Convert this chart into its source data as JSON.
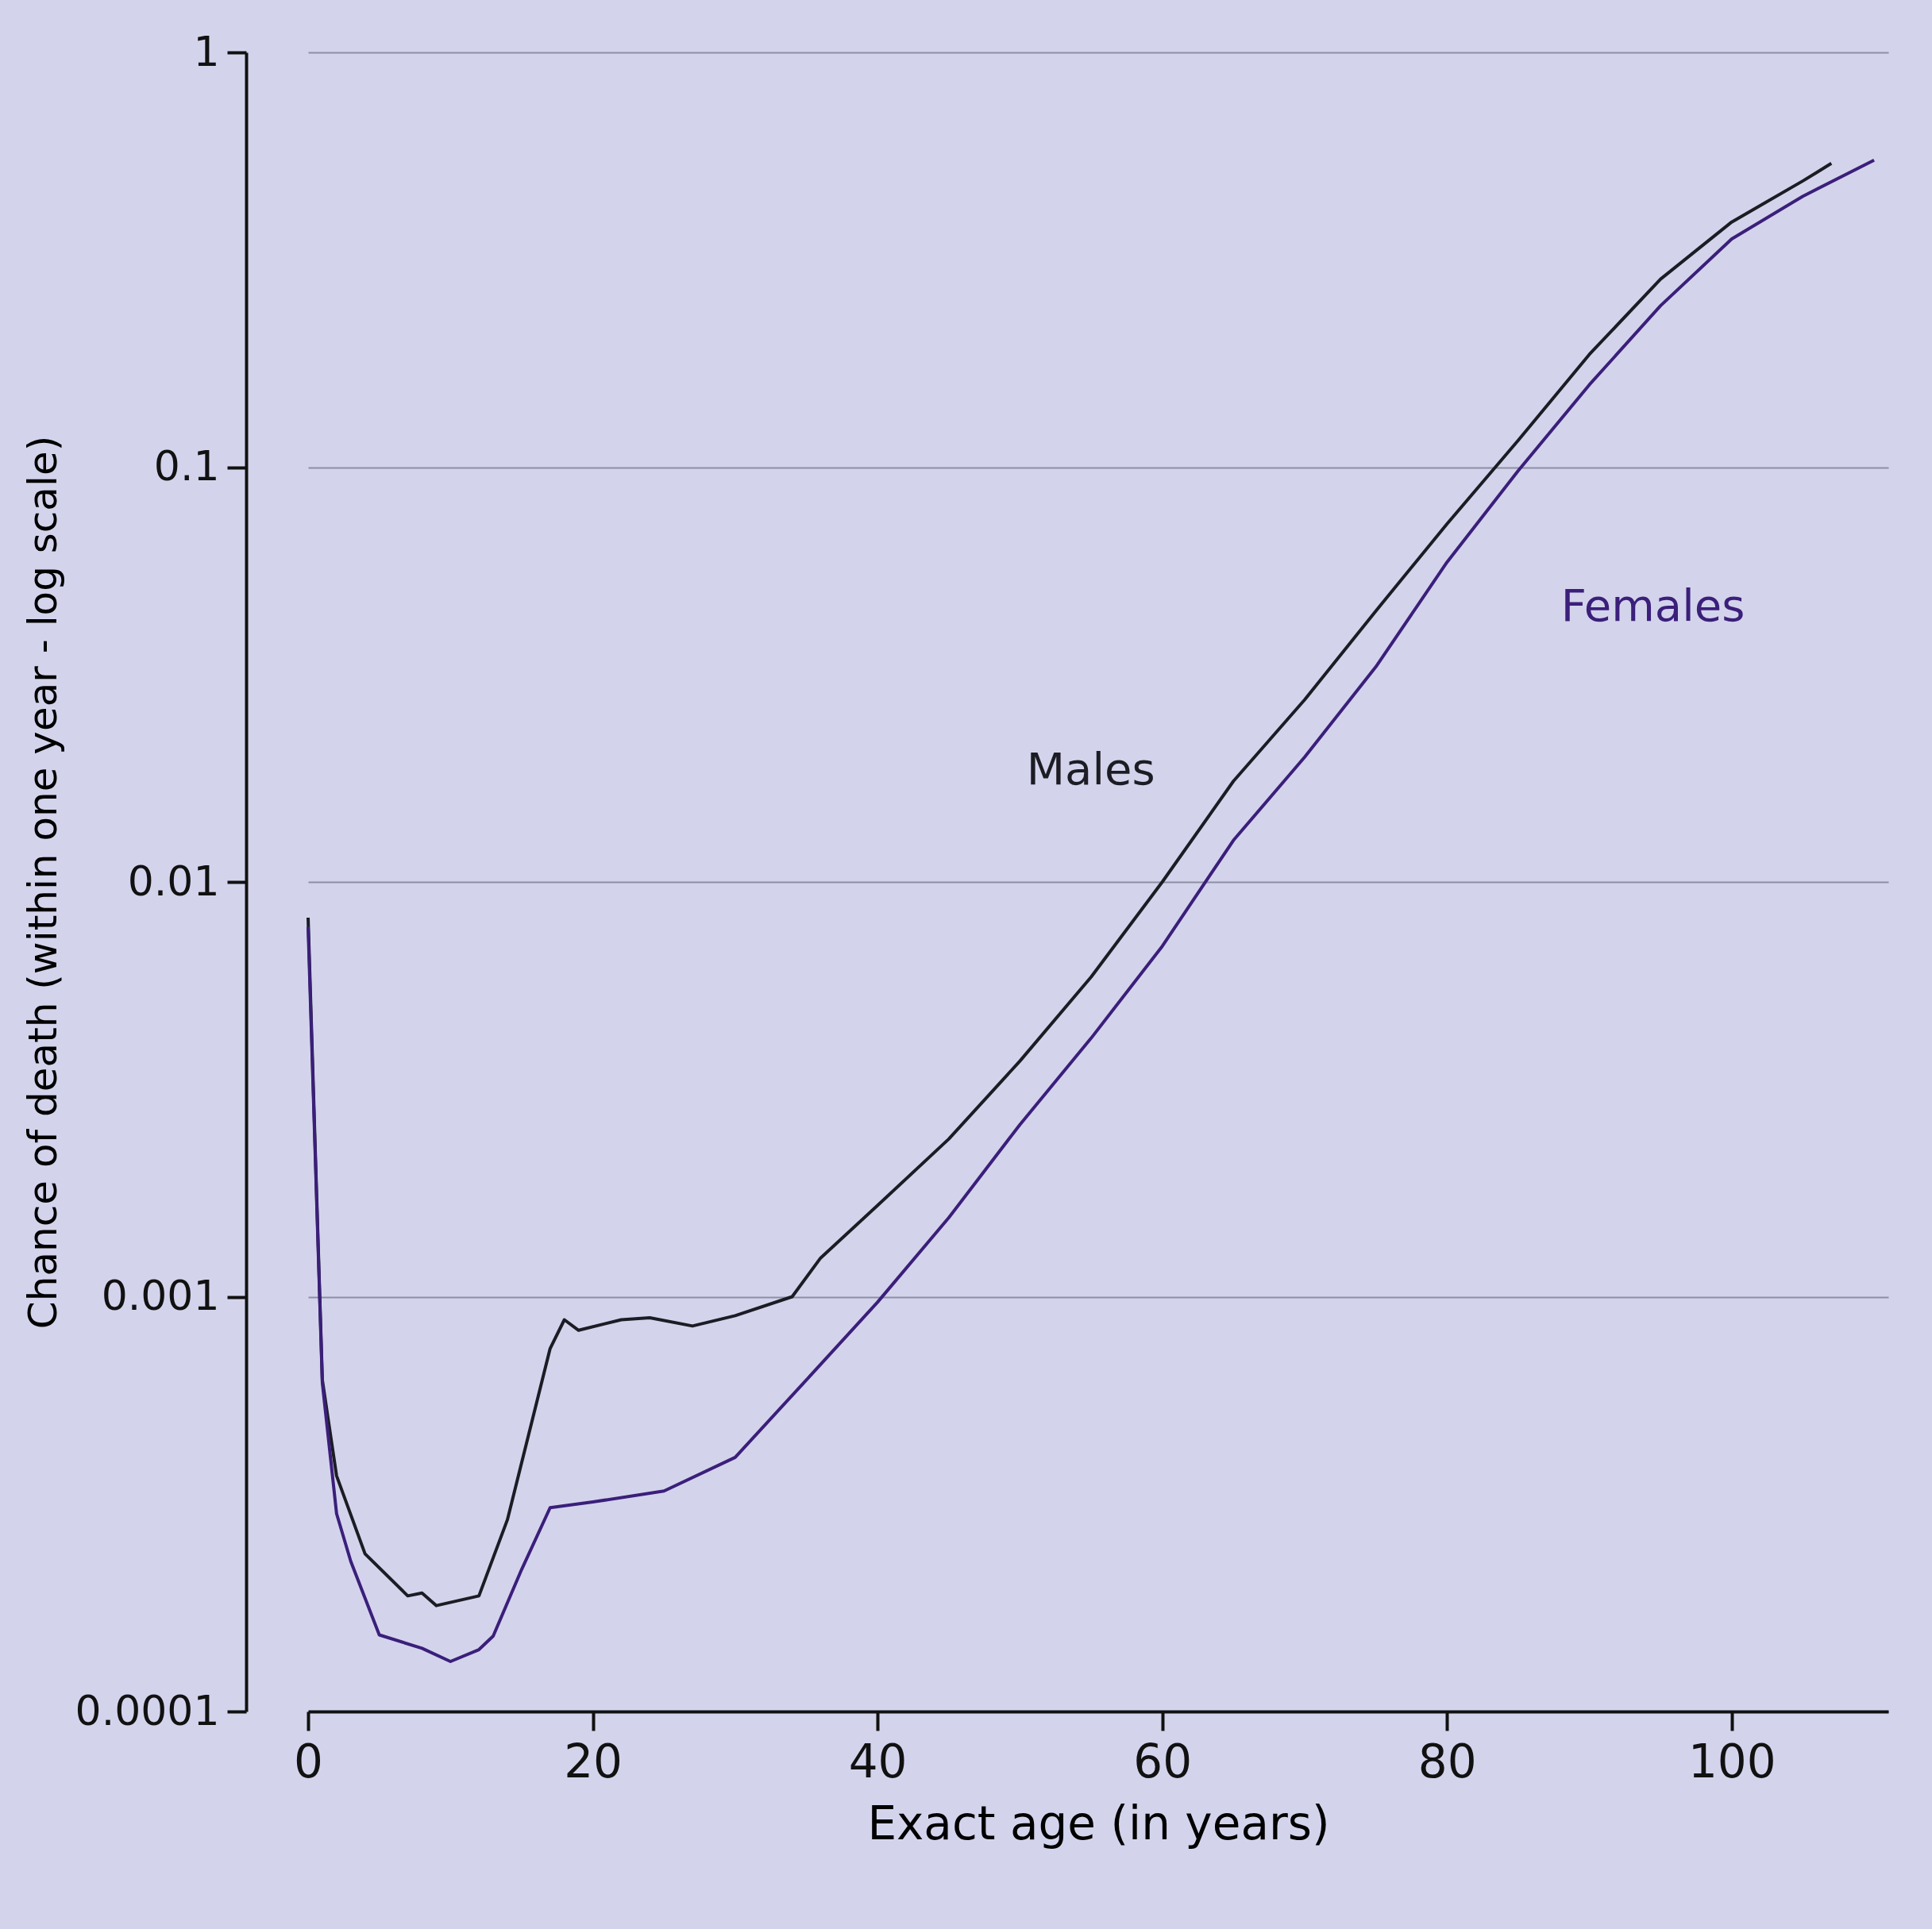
{
  "chart_data": {
    "type": "line",
    "xlabel": "Exact age (in years)",
    "ylabel": "Chance of death (within one year - log scale)",
    "log": "y",
    "grid": "y",
    "legend": false,
    "line_style": "solid",
    "marker": "none",
    "xlim": [
      0,
      111
    ],
    "xticks": [
      0,
      20,
      40,
      60,
      80,
      100
    ],
    "ylim": [
      0.0001,
      1
    ],
    "yticks": [
      0.0001,
      0.001,
      0.01,
      0.1,
      1
    ],
    "series": [
      {
        "name": "Males",
        "color": "#1c1c24",
        "x": [
          0,
          1,
          2,
          4,
          7,
          8,
          9,
          12,
          14,
          17,
          18,
          19,
          22,
          24,
          27,
          30,
          34,
          36,
          40,
          45,
          50,
          55,
          60,
          65,
          70,
          75,
          80,
          85,
          90,
          95,
          100,
          105,
          107
        ],
        "values": [
          0.0082,
          0.00063,
          0.00037,
          0.00024,
          0.00019,
          0.000193,
          0.00018,
          0.00019,
          0.00029,
          0.00075,
          0.00088,
          0.00083,
          0.00088,
          0.00089,
          0.00085,
          0.0009,
          0.001,
          0.00124,
          0.00166,
          0.0024,
          0.0037,
          0.0059,
          0.01,
          0.0175,
          0.0275,
          0.045,
          0.073,
          0.116,
          0.187,
          0.284,
          0.39,
          0.49,
          0.54
        ]
      },
      {
        "name": "Females",
        "color": "#3b1f7a",
        "x": [
          0,
          1,
          2,
          3,
          5,
          8,
          10,
          12,
          13,
          15,
          17,
          20,
          25,
          30,
          35,
          40,
          45,
          50,
          55,
          60,
          65,
          70,
          75,
          80,
          85,
          90,
          95,
          100,
          105,
          110
        ],
        "values": [
          0.0078,
          0.00062,
          0.0003,
          0.00023,
          0.000153,
          0.000142,
          0.000132,
          0.000141,
          0.000152,
          0.00022,
          0.00031,
          0.00032,
          0.00034,
          0.00041,
          0.00063,
          0.00097,
          0.00155,
          0.0026,
          0.0042,
          0.007,
          0.0126,
          0.02,
          0.033,
          0.059,
          0.098,
          0.158,
          0.245,
          0.355,
          0.45,
          0.55
        ]
      }
    ]
  }
}
